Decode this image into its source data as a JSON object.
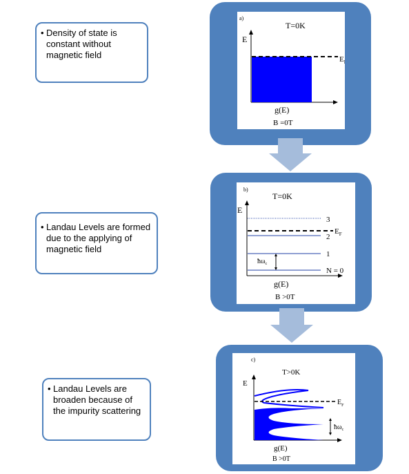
{
  "notes": [
    {
      "text": "Density of state is constant without magnetic field"
    },
    {
      "text": "Landau Levels are formed due to the applying of magnetic field"
    },
    {
      "text": "Landau Levels are broaden because of the impurity scattering"
    }
  ],
  "panels": [
    {
      "tag": "a)",
      "temp": "T=0K",
      "yaxis": "E",
      "fermi": "E",
      "fermi_sub": "F",
      "xaxis": "g(E)",
      "field": "B =0T"
    },
    {
      "tag": "b)",
      "temp": "T=0K",
      "yaxis": "E",
      "fermi": "E",
      "fermi_sub": "F",
      "xaxis": "g(E)",
      "field": "B >0T",
      "levels": [
        "3",
        "2",
        "1",
        "N = 0"
      ],
      "spacing": "ħω",
      "spacing_sub": "c"
    },
    {
      "tag": "c)",
      "temp": "T>0K",
      "yaxis": "E",
      "fermi": "E",
      "fermi_sub": "F",
      "xaxis": "g(E)",
      "field": "B >0T",
      "spacing": "ħω",
      "spacing_sub": "c"
    }
  ],
  "colors": {
    "panel_fill": "#4f81bd",
    "arrow_fill": "#a5bcdb",
    "dos_fill": "#0000ff",
    "level_line": "#1f3fa6"
  }
}
